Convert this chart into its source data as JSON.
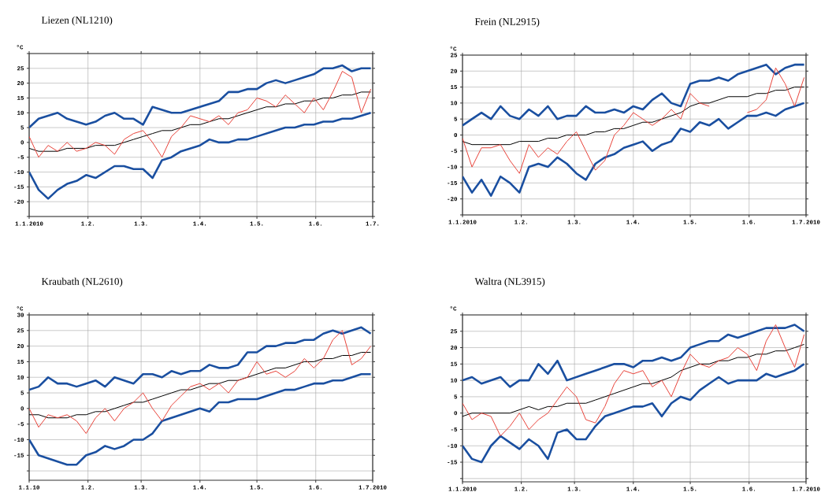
{
  "chart_data": [
    {
      "type": "line",
      "title": "Liezen (NL1210)",
      "ylabel": "°C",
      "grid": true,
      "xlim": [
        "2010-01-01",
        "2010-07-01"
      ],
      "ylim": [
        -25,
        30
      ],
      "xticks": [
        {
          "value": "2010-01-01",
          "label": "1.1.2010"
        },
        {
          "value": "2010-02-01",
          "label": "1.2."
        },
        {
          "value": "2010-03-01",
          "label": "1.3."
        },
        {
          "value": "2010-04-01",
          "label": "1.4."
        },
        {
          "value": "2010-05-01",
          "label": "1.5."
        },
        {
          "value": "2010-06-01",
          "label": "1.6."
        },
        {
          "value": "2010-07-01",
          "label": "1.7."
        }
      ],
      "yticks": [
        {
          "value": -25,
          "label": null
        },
        -20,
        -15,
        -10,
        -5,
        0,
        5,
        10,
        15,
        20,
        25,
        {
          "value": 30,
          "label": null
        }
      ],
      "x": [
        "2010-01-01",
        "2010-01-06",
        "2010-01-11",
        "2010-01-16",
        "2010-01-21",
        "2010-01-26",
        "2010-01-31",
        "2010-02-05",
        "2010-02-10",
        "2010-02-15",
        "2010-02-20",
        "2010-02-25",
        "2010-03-02",
        "2010-03-07",
        "2010-03-12",
        "2010-03-17",
        "2010-03-22",
        "2010-03-27",
        "2010-04-01",
        "2010-04-06",
        "2010-04-11",
        "2010-04-16",
        "2010-04-21",
        "2010-04-26",
        "2010-05-01",
        "2010-05-06",
        "2010-05-11",
        "2010-05-16",
        "2010-05-21",
        "2010-05-26",
        "2010-05-31",
        "2010-06-05",
        "2010-06-10",
        "2010-06-15",
        "2010-06-20",
        "2010-06-25",
        "2010-06-30"
      ],
      "series": [
        {
          "color": "#1a4fa0",
          "values": [
            5,
            8,
            9,
            10,
            8,
            7,
            6,
            7,
            9,
            10,
            8,
            8,
            6,
            12,
            11,
            10,
            10,
            11,
            12,
            13,
            14,
            17,
            17,
            18,
            18,
            20,
            21,
            20,
            21,
            22,
            23,
            25,
            25,
            26,
            24,
            25,
            25
          ]
        },
        {
          "color": "#1a4fa0",
          "values": [
            -10,
            -16,
            -19,
            -16,
            -14,
            -13,
            -11,
            -12,
            -10,
            -8,
            -8,
            -9,
            -9,
            -12,
            -6,
            -5,
            -3,
            -2,
            -1,
            1,
            0,
            0,
            1,
            1,
            2,
            3,
            4,
            5,
            5,
            6,
            6,
            7,
            7,
            8,
            8,
            9,
            10
          ]
        },
        {
          "color": "#000000",
          "values": [
            -2,
            -3,
            -3,
            -3,
            -2,
            -2,
            -2,
            -1,
            -1,
            -1,
            0,
            1,
            2,
            3,
            4,
            4,
            5,
            6,
            6,
            7,
            8,
            8,
            9,
            10,
            11,
            12,
            12,
            13,
            13,
            14,
            14,
            15,
            15,
            16,
            16,
            17,
            17
          ]
        },
        {
          "color": "#e8433a",
          "values": [
            2,
            -5,
            -1,
            -3,
            0,
            -3,
            -2,
            0,
            -1,
            -4,
            1,
            3,
            4,
            0,
            -5,
            2,
            5,
            9,
            8,
            7,
            9,
            6,
            10,
            11,
            15,
            14,
            12,
            16,
            13,
            10,
            15,
            11,
            17,
            24,
            22,
            10,
            18
          ]
        }
      ]
    },
    {
      "type": "line",
      "title": "Frein (NL2915)",
      "ylabel": "°C",
      "grid": true,
      "xlim": [
        "2010-01-01",
        "2010-07-01"
      ],
      "ylim": [
        -25,
        25
      ],
      "xticks": [
        {
          "value": "2010-01-01",
          "label": "1.1.2010"
        },
        {
          "value": "2010-02-01",
          "label": "1.2."
        },
        {
          "value": "2010-03-01",
          "label": "1.3."
        },
        {
          "value": "2010-04-01",
          "label": "1.4."
        },
        {
          "value": "2010-05-01",
          "label": "1.5."
        },
        {
          "value": "2010-06-01",
          "label": "1.6."
        },
        {
          "value": "2010-07-01",
          "label": "1.7.2010"
        }
      ],
      "yticks": [
        {
          "value": -25,
          "label": null
        },
        -20,
        -15,
        -10,
        -5,
        0,
        5,
        10,
        15,
        20,
        25
      ],
      "x": [
        "2010-01-01",
        "2010-01-06",
        "2010-01-11",
        "2010-01-16",
        "2010-01-21",
        "2010-01-26",
        "2010-01-31",
        "2010-02-05",
        "2010-02-10",
        "2010-02-15",
        "2010-02-20",
        "2010-02-25",
        "2010-03-02",
        "2010-03-07",
        "2010-03-12",
        "2010-03-17",
        "2010-03-22",
        "2010-03-27",
        "2010-04-01",
        "2010-04-06",
        "2010-04-11",
        "2010-04-16",
        "2010-04-21",
        "2010-04-26",
        "2010-05-01",
        "2010-05-06",
        "2010-05-11",
        "2010-05-16",
        "2010-05-21",
        "2010-05-26",
        "2010-05-31",
        "2010-06-05",
        "2010-06-10",
        "2010-06-15",
        "2010-06-20",
        "2010-06-25",
        "2010-06-30"
      ],
      "series": [
        {
          "color": "#1a4fa0",
          "values": [
            3,
            5,
            7,
            5,
            9,
            6,
            5,
            8,
            6,
            9,
            5,
            6,
            6,
            9,
            7,
            7,
            8,
            7,
            9,
            8,
            11,
            13,
            10,
            9,
            16,
            17,
            17,
            18,
            17,
            19,
            20,
            21,
            22,
            19,
            21,
            22,
            22
          ]
        },
        {
          "color": "#1a4fa0",
          "values": [
            -13,
            -18,
            -14,
            -19,
            -13,
            -15,
            -18,
            -10,
            -9,
            -10,
            -7,
            -9,
            -12,
            -14,
            -9,
            -7,
            -6,
            -4,
            -3,
            -2,
            -5,
            -3,
            -2,
            2,
            1,
            4,
            3,
            5,
            2,
            4,
            6,
            6,
            7,
            6,
            8,
            9,
            10
          ]
        },
        {
          "color": "#000000",
          "values": [
            -2,
            -3,
            -3,
            -3,
            -3,
            -3,
            -2,
            -2,
            -2,
            -1,
            -1,
            0,
            0,
            0,
            1,
            1,
            2,
            2,
            3,
            4,
            4,
            5,
            6,
            7,
            9,
            10,
            10,
            11,
            12,
            12,
            12,
            13,
            13,
            14,
            14,
            15,
            15
          ]
        },
        {
          "color": "#e8433a",
          "values": [
            -1,
            -10,
            -4,
            -4,
            -3,
            -8,
            -12,
            -3,
            -7,
            -4,
            -6,
            -2,
            1,
            -5,
            -11,
            -8,
            0,
            3,
            7,
            5,
            3,
            5,
            8,
            5,
            13,
            10,
            9,
            null,
            null,
            null,
            7,
            8,
            11,
            21,
            16,
            9,
            18
          ]
        }
      ]
    },
    {
      "type": "line",
      "title": "Kraubath (NL2610)",
      "ylabel": "°C",
      "grid": true,
      "xlim": [
        "2010-01-01",
        "2010-07-01"
      ],
      "ylim": [
        -23,
        30
      ],
      "xticks": [
        {
          "value": "2010-01-01",
          "label": "1.1.10"
        },
        {
          "value": "2010-02-01",
          "label": "1.2."
        },
        {
          "value": "2010-03-01",
          "label": "1.3."
        },
        {
          "value": "2010-04-01",
          "label": "1.4."
        },
        {
          "value": "2010-05-01",
          "label": "1.5."
        },
        {
          "value": "2010-06-01",
          "label": "1.6."
        },
        {
          "value": "2010-07-01",
          "label": "1.7.2010"
        }
      ],
      "yticks": [
        {
          "value": -20,
          "label": null
        },
        -15,
        -10,
        -5,
        0,
        5,
        10,
        15,
        20,
        25,
        30
      ],
      "x": [
        "2010-01-01",
        "2010-01-06",
        "2010-01-11",
        "2010-01-16",
        "2010-01-21",
        "2010-01-26",
        "2010-01-31",
        "2010-02-05",
        "2010-02-10",
        "2010-02-15",
        "2010-02-20",
        "2010-02-25",
        "2010-03-02",
        "2010-03-07",
        "2010-03-12",
        "2010-03-17",
        "2010-03-22",
        "2010-03-27",
        "2010-04-01",
        "2010-04-06",
        "2010-04-11",
        "2010-04-16",
        "2010-04-21",
        "2010-04-26",
        "2010-05-01",
        "2010-05-06",
        "2010-05-11",
        "2010-05-16",
        "2010-05-21",
        "2010-05-26",
        "2010-05-31",
        "2010-06-05",
        "2010-06-10",
        "2010-06-15",
        "2010-06-20",
        "2010-06-25",
        "2010-06-30"
      ],
      "series": [
        {
          "color": "#1a4fa0",
          "values": [
            6,
            7,
            10,
            8,
            8,
            7,
            8,
            9,
            7,
            10,
            9,
            8,
            11,
            11,
            10,
            12,
            11,
            12,
            12,
            14,
            13,
            13,
            14,
            18,
            18,
            20,
            20,
            21,
            21,
            22,
            22,
            24,
            25,
            24,
            25,
            26,
            24
          ]
        },
        {
          "color": "#1a4fa0",
          "values": [
            -10,
            -15,
            -16,
            -17,
            -18,
            -18,
            -15,
            -14,
            -12,
            -13,
            -12,
            -10,
            -10,
            -8,
            -4,
            -3,
            -2,
            -1,
            0,
            -1,
            2,
            2,
            3,
            3,
            3,
            4,
            5,
            6,
            6,
            7,
            8,
            8,
            9,
            9,
            10,
            11,
            11
          ]
        },
        {
          "color": "#000000",
          "values": [
            -2,
            -2,
            -3,
            -3,
            -3,
            -2,
            -2,
            -1,
            -1,
            0,
            1,
            2,
            2,
            3,
            4,
            5,
            6,
            6,
            7,
            8,
            8,
            9,
            9,
            10,
            11,
            12,
            13,
            13,
            14,
            15,
            15,
            16,
            16,
            17,
            17,
            18,
            18
          ]
        },
        {
          "color": "#e8433a",
          "values": [
            0,
            -6,
            -2,
            -3,
            -2,
            -4,
            -8,
            -3,
            0,
            -4,
            0,
            2,
            5,
            0,
            -4,
            1,
            4,
            7,
            8,
            6,
            8,
            5,
            9,
            10,
            15,
            11,
            12,
            10,
            12,
            16,
            13,
            16,
            22,
            25,
            14,
            16,
            20
          ]
        }
      ]
    },
    {
      "type": "line",
      "title": "Waltra (NL3915)",
      "ylabel": "°C",
      "grid": true,
      "xlim": [
        "2010-01-01",
        "2010-07-01"
      ],
      "ylim": [
        -21,
        30
      ],
      "xticks": [
        {
          "value": "2010-01-01",
          "label": "1.1.2010"
        },
        {
          "value": "2010-02-01",
          "label": "1.2."
        },
        {
          "value": "2010-03-01",
          "label": "1.3."
        },
        {
          "value": "2010-04-01",
          "label": "1.4."
        },
        {
          "value": "2010-05-01",
          "label": "1.5."
        },
        {
          "value": "2010-06-01",
          "label": "1.6."
        },
        {
          "value": "2010-07-01",
          "label": "1.7.2010"
        }
      ],
      "yticks": [
        {
          "value": -20,
          "label": null
        },
        -15,
        -10,
        -5,
        0,
        5,
        10,
        15,
        20,
        25,
        {
          "value": 30,
          "label": null
        }
      ],
      "x": [
        "2010-01-01",
        "2010-01-06",
        "2010-01-11",
        "2010-01-16",
        "2010-01-21",
        "2010-01-26",
        "2010-01-31",
        "2010-02-05",
        "2010-02-10",
        "2010-02-15",
        "2010-02-20",
        "2010-02-25",
        "2010-03-02",
        "2010-03-07",
        "2010-03-12",
        "2010-03-17",
        "2010-03-22",
        "2010-03-27",
        "2010-04-01",
        "2010-04-06",
        "2010-04-11",
        "2010-04-16",
        "2010-04-21",
        "2010-04-26",
        "2010-05-01",
        "2010-05-06",
        "2010-05-11",
        "2010-05-16",
        "2010-05-21",
        "2010-05-26",
        "2010-05-31",
        "2010-06-05",
        "2010-06-10",
        "2010-06-15",
        "2010-06-20",
        "2010-06-25",
        "2010-06-30"
      ],
      "series": [
        {
          "color": "#1a4fa0",
          "values": [
            10,
            11,
            9,
            10,
            11,
            8,
            10,
            10,
            15,
            12,
            16,
            10,
            11,
            12,
            13,
            14,
            15,
            15,
            14,
            16,
            16,
            17,
            16,
            17,
            20,
            21,
            22,
            22,
            24,
            23,
            24,
            25,
            26,
            26,
            26,
            27,
            25
          ]
        },
        {
          "color": "#1a4fa0",
          "values": [
            -10,
            -14,
            -15,
            -10,
            -7,
            -9,
            -11,
            -8,
            -10,
            -14,
            -6,
            -5,
            -8,
            -8,
            -4,
            -1,
            0,
            1,
            2,
            2,
            3,
            -1,
            3,
            5,
            4,
            7,
            9,
            11,
            9,
            10,
            10,
            10,
            12,
            11,
            12,
            13,
            15
          ]
        },
        {
          "color": "#000000",
          "values": [
            -1,
            0,
            0,
            0,
            0,
            0,
            1,
            2,
            1,
            2,
            2,
            3,
            3,
            3,
            4,
            5,
            6,
            7,
            8,
            9,
            9,
            10,
            11,
            13,
            14,
            15,
            15,
            16,
            16,
            17,
            17,
            18,
            18,
            19,
            19,
            20,
            21
          ]
        },
        {
          "color": "#e8433a",
          "values": [
            3,
            -2,
            0,
            -1,
            -7,
            -4,
            0,
            -5,
            -2,
            0,
            4,
            8,
            5,
            -2,
            -3,
            2,
            9,
            13,
            12,
            13,
            8,
            10,
            5,
            12,
            18,
            15,
            14,
            16,
            17,
            20,
            18,
            13,
            22,
            27,
            20,
            14,
            24
          ]
        }
      ]
    }
  ]
}
